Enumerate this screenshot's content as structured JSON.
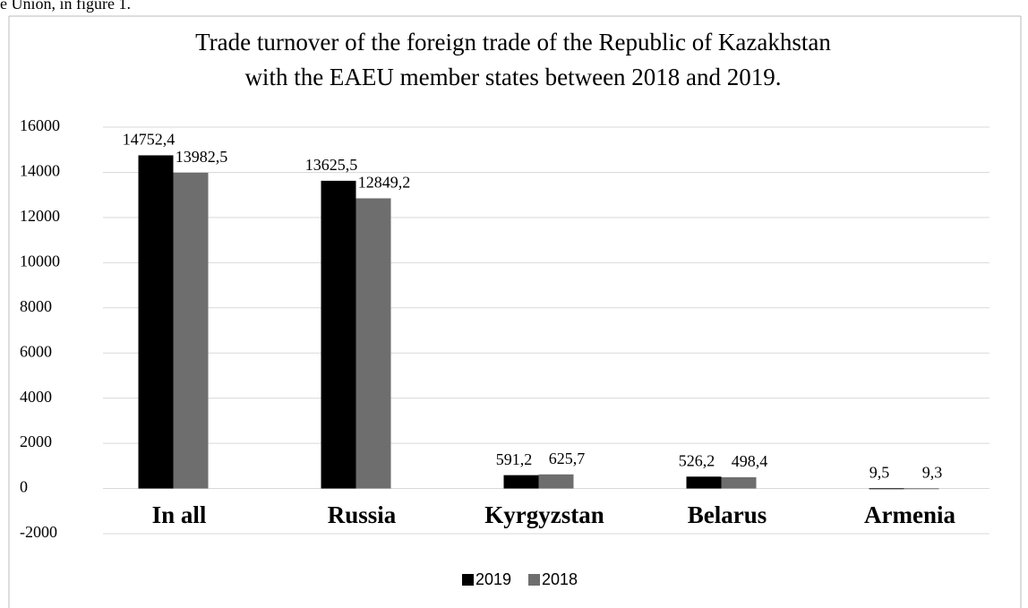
{
  "page_text": "e Union, in figure 1.",
  "chart_data": {
    "type": "bar",
    "title": [
      "Trade turnover of the foreign trade of the Republic of Kazakhstan",
      "with the EAEU member states between 2018 and 2019."
    ],
    "categories": [
      "In all",
      "Russia",
      "Kyrgyzstan",
      "Belarus",
      "Armenia"
    ],
    "series": [
      {
        "name": "2019",
        "color": "#000000",
        "values": [
          14752.4,
          13625.5,
          591.2,
          526.2,
          9.5
        ],
        "value_labels": [
          "14752,4",
          "13625,5",
          "591,2",
          "526,2",
          "9,5"
        ]
      },
      {
        "name": "2018",
        "color": "#6e6e6e",
        "values": [
          13982.5,
          12849.2,
          625.7,
          498.4,
          9.3
        ],
        "value_labels": [
          "13982,5",
          "12849,2",
          "625,7",
          "498,4",
          "9,3"
        ]
      }
    ],
    "ylim": [
      -2000,
      16000
    ],
    "yticks": [
      -2000,
      0,
      2000,
      4000,
      6000,
      8000,
      10000,
      12000,
      14000,
      16000
    ],
    "grid": true,
    "legend": "bottom"
  }
}
